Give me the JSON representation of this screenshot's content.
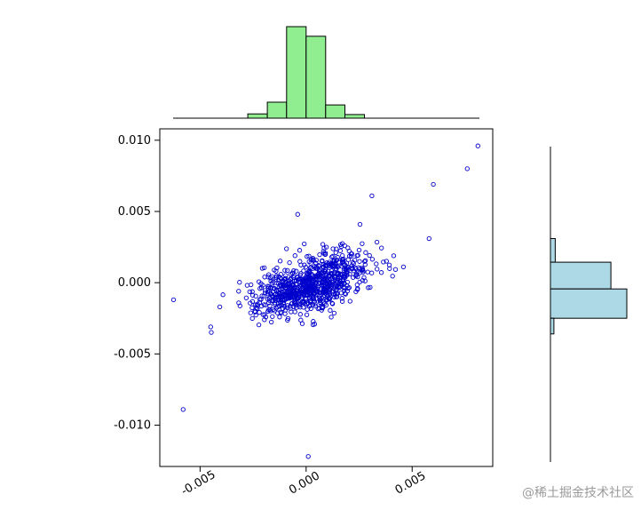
{
  "watermark": {
    "text": "@稀土掘金技术社区",
    "color": "#9a9a9a"
  },
  "colors": {
    "background": "#ffffff",
    "axis": "#000000",
    "scatter_stroke": "#0000cc",
    "top_hist_fill": "#90ee90",
    "top_hist_stroke": "#000000",
    "right_hist_fill": "#add8e6",
    "right_hist_stroke": "#000000"
  },
  "chart_data": [
    {
      "id": "scatter",
      "type": "scatter",
      "title": "",
      "xlabel": "",
      "ylabel": "",
      "grid": false,
      "legend": false,
      "xlim": [
        -0.0069,
        0.0088
      ],
      "ylim": [
        -0.0129,
        0.0108
      ],
      "x_ticks": [
        -0.005,
        0,
        0.005
      ],
      "x_tick_labels": [
        "-0.005",
        "0.000",
        "0.005"
      ],
      "x_tick_label_rotation_deg": -30,
      "y_ticks": [
        0.01,
        0.005,
        0,
        -0.005,
        -0.01
      ],
      "y_tick_labels": [
        "0.010",
        "0.005",
        "0.000",
        "-0.005",
        "-0.010"
      ],
      "marker": "open-circle",
      "point_color": "#0000cc",
      "cloud": {
        "n_points": 850,
        "seed": 7,
        "center": [
          0.0002,
          -0.0001
        ],
        "sd": [
          0.0013,
          0.0011
        ],
        "correlation": 0.55
      },
      "outliers": [
        [
          0.0081,
          0.0096
        ],
        [
          0.0076,
          0.008
        ],
        [
          0.006,
          0.0069
        ],
        [
          0.0031,
          0.0061
        ],
        [
          -0.0004,
          0.0048
        ],
        [
          -0.0058,
          -0.0089
        ],
        [
          -0.00625,
          -0.0012
        ],
        [
          0.0001,
          -0.0122
        ],
        [
          0.0058,
          0.0031
        ],
        [
          -0.0045,
          -0.0031
        ]
      ]
    },
    {
      "id": "top_hist",
      "type": "bar",
      "role": "x-marginal-histogram",
      "orientation": "vertical",
      "fill": "#90ee90",
      "stroke": "#000000",
      "bin_edges": [
        -0.00275,
        -0.00183,
        -0.00092,
        0.0,
        0.00092,
        0.00183,
        0.00275
      ],
      "counts": [
        20,
        75,
        430,
        385,
        62,
        17
      ]
    },
    {
      "id": "right_hist",
      "type": "bar",
      "role": "y-marginal-histogram",
      "orientation": "horizontal",
      "fill": "#add8e6",
      "stroke": "#000000",
      "bin_edges_top_to_bottom": [
        0.0031,
        0.00144,
        -0.00044,
        -0.0025,
        -0.0036
      ],
      "counts": [
        30,
        380,
        480,
        22
      ]
    }
  ]
}
